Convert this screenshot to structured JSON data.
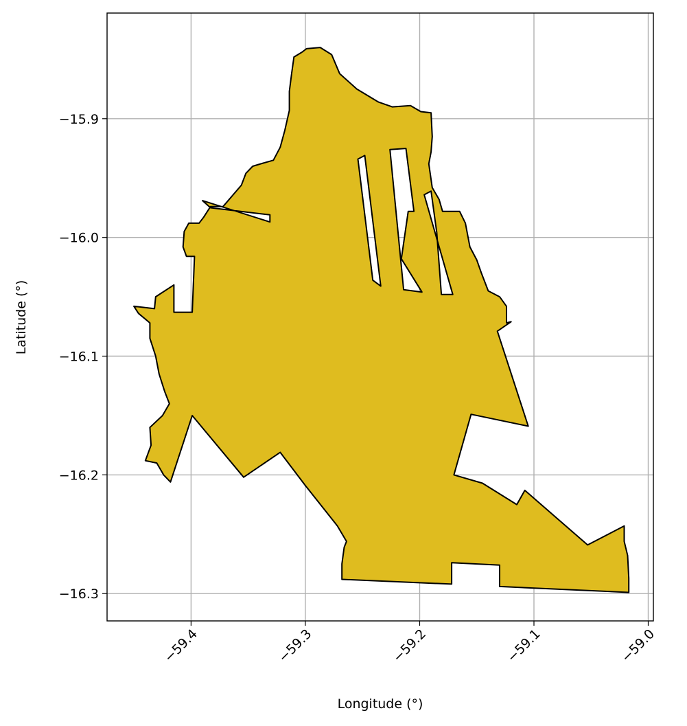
{
  "chart_data": {
    "type": "map",
    "xlabel": "Longitude (°)",
    "ylabel": "Latitude (°)",
    "xlim": [
      -59.4735,
      -58.9955
    ],
    "ylim": [
      -16.323,
      -15.811
    ],
    "xticks": [
      -59.4,
      -59.3,
      -59.2,
      -59.1,
      -59.0
    ],
    "xtick_labels": [
      "−59.4",
      "−59.3",
      "−59.2",
      "−59.1",
      "−59.0"
    ],
    "yticks": [
      -15.9,
      -16.0,
      -16.1,
      -16.2,
      -16.3
    ],
    "ytick_labels": [
      "−15.9",
      "−16.0",
      "−16.1",
      "−16.2",
      "−16.3"
    ],
    "grid": true,
    "fill_color": "#dfbc1f",
    "edge_color": "#000000",
    "region": {
      "outer": [
        [
          -59.299,
          -15.841
        ],
        [
          -59.287,
          -15.84
        ],
        [
          -59.277,
          -15.846
        ],
        [
          -59.27,
          -15.862
        ],
        [
          -59.255,
          -15.875
        ],
        [
          -59.236,
          -15.886
        ],
        [
          -59.224,
          -15.89
        ],
        [
          -59.208,
          -15.889
        ],
        [
          -59.199,
          -15.894
        ],
        [
          -59.19,
          -15.895
        ],
        [
          -59.189,
          -15.915
        ],
        [
          -59.19,
          -15.928
        ],
        [
          -59.192,
          -15.938
        ],
        [
          -59.189,
          -15.958
        ],
        [
          -59.183,
          -15.968
        ],
        [
          -59.18,
          -15.978
        ],
        [
          -59.165,
          -15.978
        ],
        [
          -59.16,
          -15.988
        ],
        [
          -59.156,
          -16.008
        ],
        [
          -59.15,
          -16.019
        ],
        [
          -59.146,
          -16.03
        ],
        [
          -59.14,
          -16.045
        ],
        [
          -59.13,
          -16.05
        ],
        [
          -59.124,
          -16.058
        ],
        [
          -59.124,
          -16.072
        ],
        [
          -59.12,
          -16.071
        ],
        [
          -59.132,
          -16.079
        ],
        [
          -59.105,
          -16.159
        ],
        [
          -59.155,
          -16.149
        ],
        [
          -59.17,
          -16.2
        ],
        [
          -59.145,
          -16.207
        ],
        [
          -59.115,
          -16.225
        ],
        [
          -59.108,
          -16.213
        ],
        [
          -59.053,
          -16.259
        ],
        [
          -59.021,
          -16.243
        ],
        [
          -59.021,
          -16.256
        ],
        [
          -59.018,
          -16.268
        ],
        [
          -59.017,
          -16.287
        ],
        [
          -59.017,
          -16.299
        ],
        [
          -59.13,
          -16.294
        ],
        [
          -59.13,
          -16.276
        ],
        [
          -59.172,
          -16.274
        ],
        [
          -59.172,
          -16.292
        ],
        [
          -59.268,
          -16.288
        ],
        [
          -59.268,
          -16.275
        ],
        [
          -59.266,
          -16.261
        ],
        [
          -59.264,
          -16.256
        ],
        [
          -59.272,
          -16.243
        ],
        [
          -59.3,
          -16.209
        ],
        [
          -59.322,
          -16.181
        ],
        [
          -59.354,
          -16.202
        ],
        [
          -59.399,
          -16.15
        ],
        [
          -59.418,
          -16.206
        ],
        [
          -59.424,
          -16.2
        ],
        [
          -59.43,
          -16.19
        ],
        [
          -59.44,
          -16.188
        ],
        [
          -59.435,
          -16.175
        ],
        [
          -59.436,
          -16.16
        ],
        [
          -59.425,
          -16.15
        ],
        [
          -59.419,
          -16.14
        ],
        [
          -59.423,
          -16.13
        ],
        [
          -59.428,
          -16.115
        ],
        [
          -59.431,
          -16.1
        ],
        [
          -59.436,
          -16.085
        ],
        [
          -59.436,
          -16.072
        ],
        [
          -59.446,
          -16.064
        ],
        [
          -59.45,
          -16.058
        ],
        [
          -59.432,
          -16.06
        ],
        [
          -59.431,
          -16.05
        ],
        [
          -59.415,
          -16.04
        ],
        [
          -59.415,
          -16.063
        ],
        [
          -59.399,
          -16.063
        ],
        [
          -59.397,
          -16.016
        ],
        [
          -59.404,
          -16.016
        ],
        [
          -59.407,
          -16.008
        ],
        [
          -59.406,
          -15.995
        ],
        [
          -59.402,
          -15.988
        ],
        [
          -59.393,
          -15.988
        ],
        [
          -59.389,
          -15.983
        ],
        [
          -59.383,
          -15.974
        ],
        [
          -59.372,
          -15.974
        ],
        [
          -59.356,
          -15.956
        ],
        [
          -59.352,
          -15.946
        ],
        [
          -59.346,
          -15.94
        ],
        [
          -59.339,
          -15.938
        ],
        [
          -59.328,
          -15.935
        ],
        [
          -59.322,
          -15.924
        ],
        [
          -59.318,
          -15.91
        ],
        [
          -59.314,
          -15.893
        ],
        [
          -59.314,
          -15.877
        ],
        [
          -59.312,
          -15.862
        ],
        [
          -59.31,
          -15.848
        ],
        [
          -59.303,
          -15.844
        ]
      ],
      "holes": [
        [
          [
            -59.383,
            -15.975
          ],
          [
            -59.331,
            -15.981
          ],
          [
            -59.331,
            -15.987
          ],
          [
            -59.39,
            -15.969
          ]
        ],
        [
          [
            -59.254,
            -15.934
          ],
          [
            -59.248,
            -15.931
          ],
          [
            -59.234,
            -16.041
          ],
          [
            -59.241,
            -16.036
          ]
        ],
        [
          [
            -59.226,
            -15.926
          ],
          [
            -59.212,
            -15.925
          ],
          [
            -59.205,
            -15.978
          ],
          [
            -59.21,
            -15.978
          ],
          [
            -59.216,
            -16.018
          ],
          [
            -59.198,
            -16.046
          ],
          [
            -59.214,
            -16.044
          ]
        ],
        [
          [
            -59.196,
            -15.964
          ],
          [
            -59.19,
            -15.961
          ],
          [
            -59.185,
            -15.996
          ],
          [
            -59.181,
            -16.048
          ],
          [
            -59.171,
            -16.048
          ]
        ]
      ]
    }
  }
}
